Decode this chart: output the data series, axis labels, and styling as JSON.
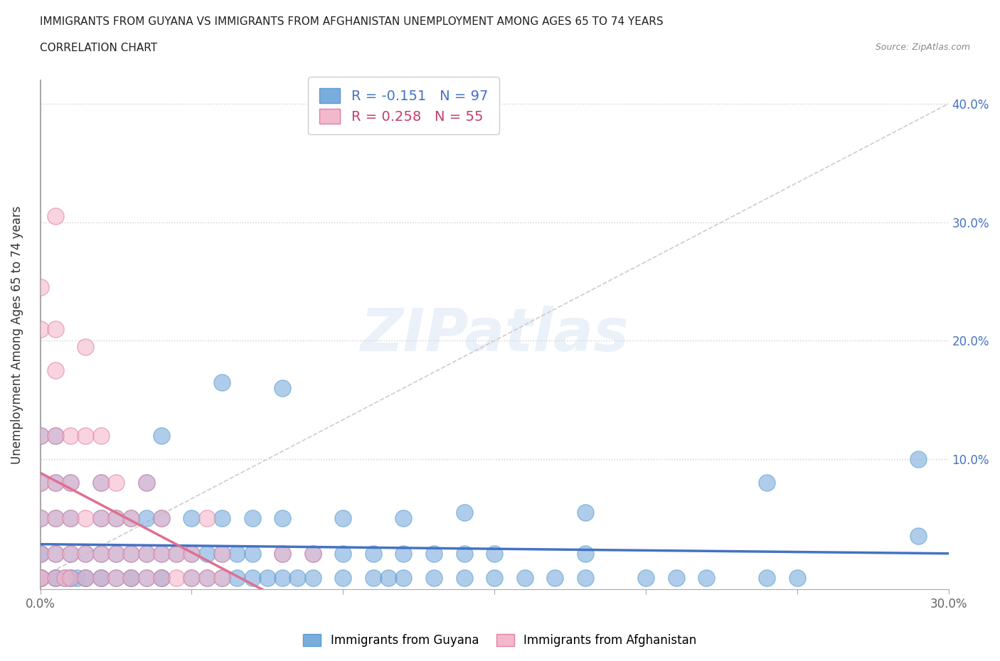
{
  "title_line1": "IMMIGRANTS FROM GUYANA VS IMMIGRANTS FROM AFGHANISTAN UNEMPLOYMENT AMONG AGES 65 TO 74 YEARS",
  "title_line2": "CORRELATION CHART",
  "source": "Source: ZipAtlas.com",
  "ylabel": "Unemployment Among Ages 65 to 74 years",
  "xlim": [
    0.0,
    0.3
  ],
  "ylim": [
    -0.01,
    0.42
  ],
  "plot_ylim": [
    -0.01,
    0.42
  ],
  "xticks": [
    0.0,
    0.05,
    0.1,
    0.15,
    0.2,
    0.25,
    0.3
  ],
  "xticklabels": [
    "0.0%",
    "",
    "",
    "",
    "",
    "",
    "30.0%"
  ],
  "yticks": [
    0.0,
    0.1,
    0.2,
    0.3,
    0.4
  ],
  "yticklabels": [
    "",
    "10.0%",
    "20.0%",
    "30.0%",
    "40.0%"
  ],
  "guyana_color": "#7aadde",
  "guyana_edge": "#5a9dce",
  "afghanistan_color": "#f4b8cc",
  "afghanistan_edge": "#e080a0",
  "guyana_R": -0.151,
  "guyana_N": 97,
  "afghanistan_R": 0.258,
  "afghanistan_N": 55,
  "guyana_line_color": "#4472c4",
  "afghanistan_line_color": "#e07090",
  "legend_guyana": "Immigrants from Guyana",
  "legend_afghanistan": "Immigrants from Afghanistan",
  "watermark": "ZIPatlas",
  "legend_text_blue": "#4472c4",
  "legend_text_pink": "#c0406a",
  "guyana_points": [
    [
      0.0,
      0.0
    ],
    [
      0.0,
      0.0
    ],
    [
      0.0,
      0.0
    ],
    [
      0.0,
      0.0
    ],
    [
      0.0,
      0.0
    ],
    [
      0.005,
      0.0
    ],
    [
      0.005,
      0.0
    ],
    [
      0.008,
      0.0
    ],
    [
      0.01,
      0.0
    ],
    [
      0.01,
      0.0
    ],
    [
      0.012,
      0.0
    ],
    [
      0.015,
      0.0
    ],
    [
      0.015,
      0.0
    ],
    [
      0.02,
      0.0
    ],
    [
      0.02,
      0.0
    ],
    [
      0.025,
      0.0
    ],
    [
      0.03,
      0.0
    ],
    [
      0.03,
      0.0
    ],
    [
      0.035,
      0.0
    ],
    [
      0.04,
      0.0
    ],
    [
      0.04,
      0.0
    ],
    [
      0.05,
      0.0
    ],
    [
      0.055,
      0.0
    ],
    [
      0.06,
      0.0
    ],
    [
      0.065,
      0.0
    ],
    [
      0.07,
      0.0
    ],
    [
      0.075,
      0.0
    ],
    [
      0.08,
      0.0
    ],
    [
      0.085,
      0.0
    ],
    [
      0.09,
      0.0
    ],
    [
      0.1,
      0.0
    ],
    [
      0.11,
      0.0
    ],
    [
      0.115,
      0.0
    ],
    [
      0.12,
      0.0
    ],
    [
      0.13,
      0.0
    ],
    [
      0.14,
      0.0
    ],
    [
      0.15,
      0.0
    ],
    [
      0.16,
      0.0
    ],
    [
      0.17,
      0.0
    ],
    [
      0.18,
      0.0
    ],
    [
      0.2,
      0.0
    ],
    [
      0.21,
      0.0
    ],
    [
      0.22,
      0.0
    ],
    [
      0.24,
      0.0
    ],
    [
      0.25,
      0.0
    ],
    [
      0.0,
      0.02
    ],
    [
      0.0,
      0.02
    ],
    [
      0.005,
      0.02
    ],
    [
      0.01,
      0.02
    ],
    [
      0.015,
      0.02
    ],
    [
      0.02,
      0.02
    ],
    [
      0.025,
      0.02
    ],
    [
      0.03,
      0.02
    ],
    [
      0.035,
      0.02
    ],
    [
      0.04,
      0.02
    ],
    [
      0.045,
      0.02
    ],
    [
      0.05,
      0.02
    ],
    [
      0.055,
      0.02
    ],
    [
      0.06,
      0.02
    ],
    [
      0.065,
      0.02
    ],
    [
      0.07,
      0.02
    ],
    [
      0.08,
      0.02
    ],
    [
      0.09,
      0.02
    ],
    [
      0.1,
      0.02
    ],
    [
      0.11,
      0.02
    ],
    [
      0.12,
      0.02
    ],
    [
      0.13,
      0.02
    ],
    [
      0.14,
      0.02
    ],
    [
      0.15,
      0.02
    ],
    [
      0.18,
      0.02
    ],
    [
      0.0,
      0.05
    ],
    [
      0.005,
      0.05
    ],
    [
      0.01,
      0.05
    ],
    [
      0.02,
      0.05
    ],
    [
      0.025,
      0.05
    ],
    [
      0.03,
      0.05
    ],
    [
      0.035,
      0.05
    ],
    [
      0.04,
      0.05
    ],
    [
      0.05,
      0.05
    ],
    [
      0.06,
      0.05
    ],
    [
      0.07,
      0.05
    ],
    [
      0.08,
      0.05
    ],
    [
      0.1,
      0.05
    ],
    [
      0.12,
      0.05
    ],
    [
      0.0,
      0.08
    ],
    [
      0.005,
      0.08
    ],
    [
      0.01,
      0.08
    ],
    [
      0.02,
      0.08
    ],
    [
      0.035,
      0.08
    ],
    [
      0.0,
      0.12
    ],
    [
      0.005,
      0.12
    ],
    [
      0.06,
      0.165
    ],
    [
      0.24,
      0.08
    ],
    [
      0.29,
      0.035
    ],
    [
      0.29,
      0.1
    ],
    [
      0.14,
      0.055
    ],
    [
      0.18,
      0.055
    ],
    [
      0.04,
      0.12
    ],
    [
      0.08,
      0.16
    ]
  ],
  "afghanistan_points": [
    [
      0.0,
      0.0
    ],
    [
      0.0,
      0.0
    ],
    [
      0.005,
      0.0
    ],
    [
      0.008,
      0.0
    ],
    [
      0.01,
      0.0
    ],
    [
      0.015,
      0.0
    ],
    [
      0.02,
      0.0
    ],
    [
      0.025,
      0.0
    ],
    [
      0.03,
      0.0
    ],
    [
      0.035,
      0.0
    ],
    [
      0.04,
      0.0
    ],
    [
      0.045,
      0.0
    ],
    [
      0.05,
      0.0
    ],
    [
      0.055,
      0.0
    ],
    [
      0.06,
      0.0
    ],
    [
      0.0,
      0.02
    ],
    [
      0.005,
      0.02
    ],
    [
      0.01,
      0.02
    ],
    [
      0.015,
      0.02
    ],
    [
      0.02,
      0.02
    ],
    [
      0.025,
      0.02
    ],
    [
      0.03,
      0.02
    ],
    [
      0.035,
      0.02
    ],
    [
      0.04,
      0.02
    ],
    [
      0.045,
      0.02
    ],
    [
      0.05,
      0.02
    ],
    [
      0.06,
      0.02
    ],
    [
      0.08,
      0.02
    ],
    [
      0.09,
      0.02
    ],
    [
      0.0,
      0.05
    ],
    [
      0.005,
      0.05
    ],
    [
      0.01,
      0.05
    ],
    [
      0.015,
      0.05
    ],
    [
      0.02,
      0.05
    ],
    [
      0.025,
      0.05
    ],
    [
      0.03,
      0.05
    ],
    [
      0.04,
      0.05
    ],
    [
      0.0,
      0.08
    ],
    [
      0.005,
      0.08
    ],
    [
      0.01,
      0.08
    ],
    [
      0.02,
      0.08
    ],
    [
      0.025,
      0.08
    ],
    [
      0.0,
      0.12
    ],
    [
      0.005,
      0.12
    ],
    [
      0.01,
      0.12
    ],
    [
      0.015,
      0.12
    ],
    [
      0.02,
      0.12
    ],
    [
      0.005,
      0.175
    ],
    [
      0.0,
      0.21
    ],
    [
      0.005,
      0.21
    ],
    [
      0.0,
      0.245
    ],
    [
      0.005,
      0.305
    ],
    [
      0.055,
      0.05
    ],
    [
      0.035,
      0.08
    ],
    [
      0.015,
      0.195
    ]
  ]
}
